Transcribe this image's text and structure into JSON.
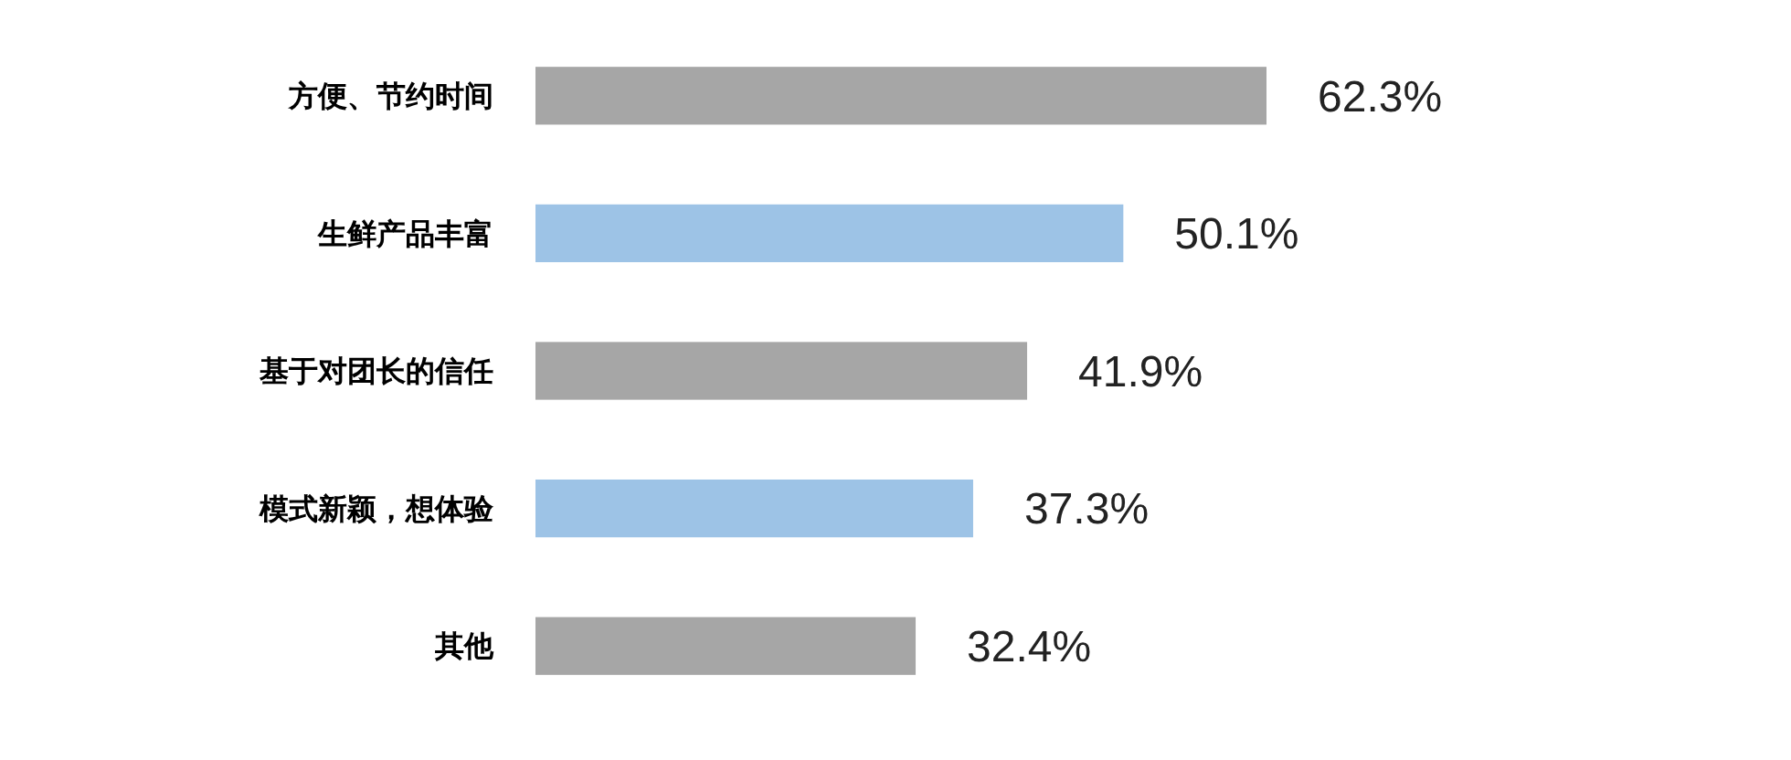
{
  "chart_data": {
    "type": "bar",
    "orientation": "horizontal",
    "categories": [
      "方便、节约时间",
      "生鲜产品丰富",
      "基于对团长的信任",
      "模式新颖，想体验",
      "其他"
    ],
    "values": [
      62.3,
      50.1,
      41.9,
      37.3,
      32.4
    ],
    "colors": [
      "#a6a6a6",
      "#9dc3e6",
      "#a6a6a6",
      "#9dc3e6",
      "#a6a6a6"
    ],
    "value_labels": [
      "62.3%",
      "50.1%",
      "41.9%",
      "37.3%",
      "32.4%"
    ]
  }
}
